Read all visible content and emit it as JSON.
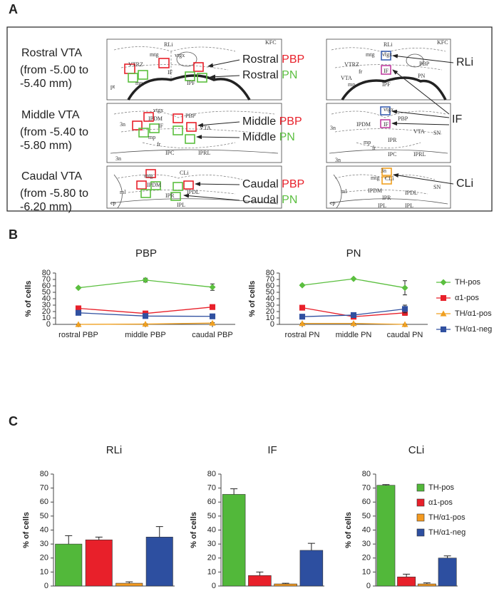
{
  "panel_labels": [
    "A",
    "B",
    "C"
  ],
  "panel_a": {
    "rows": [
      {
        "name": "Rostral VTA",
        "range": [
          "(from -5.00 to",
          "-5.40 mm)"
        ],
        "markers": [
          {
            "prefix": "Rostral",
            "region": "PBP",
            "color": "#e8202a"
          },
          {
            "prefix": "Rostral",
            "region": "PN",
            "color": "#5bbf3f"
          }
        ]
      },
      {
        "name": "Middle VTA",
        "range": [
          "(from -5.40 to",
          "-5.80 mm)"
        ],
        "markers": [
          {
            "prefix": "Middle",
            "region": "PBP",
            "color": "#e8202a"
          },
          {
            "prefix": "Middle",
            "region": "PN",
            "color": "#5bbf3f"
          }
        ]
      },
      {
        "name": "Caudal VTA",
        "range": [
          "(from -5.80 to",
          "-6.20 mm)"
        ],
        "markers": [
          {
            "prefix": "Caudal",
            "region": "PBP",
            "color": "#e8202a"
          },
          {
            "prefix": "Caudal",
            "region": "PN",
            "color": "#5bbf3f"
          }
        ]
      }
    ],
    "nuclei": [
      {
        "name": "RLi",
        "color": "#3a5fb0"
      },
      {
        "name": "IF",
        "color": "#c040a0"
      },
      {
        "name": "CLi",
        "color": "#f0a020"
      }
    ],
    "atlas": [
      [
        "RLi",
        "KFC",
        "mtg",
        "vtgx",
        "VTRZ",
        "IF",
        "IPF",
        "mp",
        "pt"
      ],
      [
        "RLi",
        "KFC",
        "mtg",
        "vtgx",
        "VTRZ",
        "VTA",
        "IF",
        "fr",
        "PBP",
        "PN",
        "mp",
        "IPF"
      ],
      [
        "vtgx",
        "PBP",
        "IPDM",
        "3n",
        "IF",
        "VTA",
        "mp",
        "fr",
        "IPC",
        "IPRL",
        "3n"
      ],
      [
        "vtgx",
        "PBP",
        "IPDM",
        "3n",
        "VTA",
        "IF",
        "SN",
        "IPR",
        "mp",
        "fr",
        "IPC",
        "IPRL",
        "3n"
      ],
      [
        "mtg",
        "CLi",
        "IPDM",
        "ml",
        "IPR",
        "IPDL",
        "cp",
        "IPL"
      ],
      [
        "3n",
        "mtg",
        "CLi",
        "IPDM",
        "ml",
        "IPR",
        "IPDL",
        "SN",
        "cp",
        "IPL",
        "IPL"
      ]
    ]
  },
  "chart_data": [
    {
      "type": "line",
      "title": "PBP",
      "y_label": "% of cells",
      "categories": [
        "rostral PBP",
        "middle PBP",
        "caudal PBP"
      ],
      "ylim": [
        0,
        80
      ],
      "yticks": [
        0,
        10,
        20,
        30,
        40,
        50,
        60,
        70,
        80
      ],
      "legend": false,
      "series": [
        {
          "name": "TH-pos",
          "color": "#5bbf3f",
          "marker": "diamond",
          "values": [
            57,
            69,
            58
          ],
          "errors": [
            1.5,
            3,
            5
          ]
        },
        {
          "name": "α1-pos",
          "color": "#e8202a",
          "marker": "square",
          "values": [
            25,
            17,
            27
          ],
          "errors": [
            2.5,
            2.5,
            3.5
          ]
        },
        {
          "name": "TH/α1-pos",
          "color": "#f0a020",
          "marker": "triangle",
          "values": [
            0,
            0.5,
            2
          ],
          "errors": [
            0.3,
            0.3,
            0.8
          ]
        },
        {
          "name": "TH/α1-neg",
          "color": "#3050a0",
          "marker": "square",
          "values": [
            18,
            13,
            12.5
          ],
          "errors": [
            1,
            2,
            1.5
          ]
        }
      ]
    },
    {
      "type": "line",
      "title": "PN",
      "y_label": "% of cells",
      "categories": [
        "rostral PN",
        "middle PN",
        "caudal PN"
      ],
      "ylim": [
        0,
        80
      ],
      "yticks": [
        0,
        10,
        20,
        30,
        40,
        50,
        60,
        70,
        80
      ],
      "legend": "right",
      "series": [
        {
          "name": "TH-pos",
          "color": "#5bbf3f",
          "marker": "diamond",
          "values": [
            61,
            71,
            57
          ],
          "errors": [
            1.5,
            1,
            11
          ]
        },
        {
          "name": "α1-pos",
          "color": "#e8202a",
          "marker": "square",
          "values": [
            26,
            12,
            18
          ],
          "errors": [
            1,
            1,
            4
          ]
        },
        {
          "name": "TH/α1-pos",
          "color": "#f0a020",
          "marker": "triangle",
          "values": [
            1.5,
            1.5,
            0
          ],
          "errors": [
            0.3,
            0.3,
            0.3
          ]
        },
        {
          "name": "TH/α1-neg",
          "color": "#3050a0",
          "marker": "square",
          "values": [
            12,
            14.5,
            24
          ],
          "errors": [
            2,
            2,
            6
          ]
        }
      ]
    },
    {
      "type": "bar",
      "title": "RLi",
      "y_label": "% of cells",
      "categories": [
        "TH-pos",
        "α1-pos",
        "TH/α1-pos",
        "TH/α1-neg"
      ],
      "colors": [
        "#52b83a",
        "#e8202a",
        "#f49a20",
        "#2d4fa0"
      ],
      "values": [
        30,
        33,
        2,
        35
      ],
      "errors": [
        6,
        2,
        1,
        7.5
      ],
      "ylim": [
        0,
        80
      ],
      "yticks": [
        0,
        10,
        20,
        30,
        40,
        50,
        60,
        70,
        80
      ],
      "legend": false
    },
    {
      "type": "bar",
      "title": "IF",
      "y_label": "% of cells",
      "categories": [
        "TH-pos",
        "α1-pos",
        "TH/α1-pos",
        "TH/α1-neg"
      ],
      "colors": [
        "#52b83a",
        "#e8202a",
        "#f49a20",
        "#2d4fa0"
      ],
      "values": [
        65.5,
        7.5,
        1.5,
        25.5
      ],
      "errors": [
        4,
        2.5,
        0.5,
        5
      ],
      "ylim": [
        0,
        80
      ],
      "yticks": [
        0,
        10,
        20,
        30,
        40,
        50,
        60,
        70,
        80
      ],
      "legend": false
    },
    {
      "type": "bar",
      "title": "CLi",
      "y_label": "% of cells",
      "categories": [
        "TH-pos",
        "α1-pos",
        "TH/α1-pos",
        "TH/α1-neg"
      ],
      "colors": [
        "#52b83a",
        "#e8202a",
        "#f49a20",
        "#2d4fa0"
      ],
      "values": [
        72,
        6.5,
        1.5,
        20
      ],
      "errors": [
        0.5,
        2,
        0.7,
        1.5
      ],
      "ylim": [
        0,
        80
      ],
      "yticks": [
        0,
        10,
        20,
        30,
        40,
        50,
        60,
        70,
        80
      ],
      "legend": "right"
    }
  ]
}
